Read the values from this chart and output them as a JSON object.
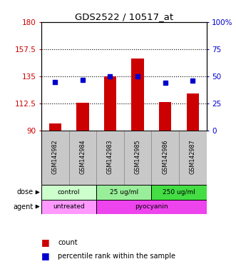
{
  "title": "GDS2522 / 10517_at",
  "samples": [
    "GSM142982",
    "GSM142984",
    "GSM142983",
    "GSM142985",
    "GSM142986",
    "GSM142987"
  ],
  "bar_values": [
    96,
    113,
    135,
    150,
    114,
    121
  ],
  "dot_values": [
    45,
    47,
    50,
    50,
    44,
    46
  ],
  "bar_color": "#cc0000",
  "dot_color": "#0000cc",
  "ymin": 90,
  "ymax": 180,
  "yticks": [
    90,
    112.5,
    135,
    157.5,
    180
  ],
  "ytick_labels": [
    "90",
    "112.5",
    "135",
    "157.5",
    "180"
  ],
  "y2min": 0,
  "y2max": 100,
  "y2ticks": [
    0,
    25,
    50,
    75,
    100
  ],
  "y2tick_labels": [
    "0",
    "25",
    "50",
    "75",
    "100%"
  ],
  "dose_info": [
    [
      0,
      2,
      "control",
      "#ccffcc"
    ],
    [
      2,
      4,
      "25 ug/ml",
      "#99ee99"
    ],
    [
      4,
      6,
      "250 ug/ml",
      "#44dd44"
    ]
  ],
  "agent_info": [
    [
      0,
      2,
      "untreated",
      "#ff99ff"
    ],
    [
      2,
      6,
      "pyocyanin",
      "#ee44ee"
    ]
  ],
  "sample_bg": "#c8c8c8",
  "legend_count": "count",
  "legend_pct": "percentile rank within the sample"
}
